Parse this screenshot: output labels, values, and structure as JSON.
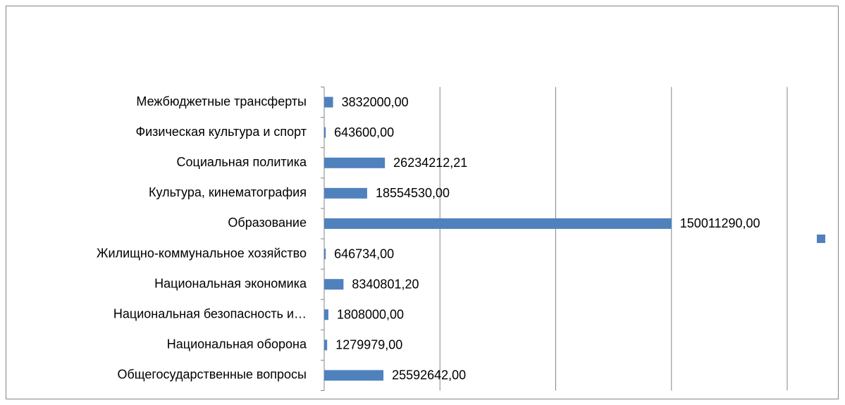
{
  "chart_data": {
    "type": "bar",
    "orientation": "horizontal",
    "categories": [
      "Межбюджетные трансферты",
      "Физическая культура и спорт",
      "Социальная политика",
      "Культура, кинематография",
      "Образование",
      "Жилищно-коммунальное хозяйство",
      "Национальная экономика",
      "Национальная безопасность и…",
      "Национальная оборона",
      "Общегосударственные вопросы"
    ],
    "values": [
      3832000,
      643600,
      26234212.21,
      18554530,
      150011290,
      646734,
      8340801.2,
      1808000,
      1279979,
      25592642
    ],
    "value_labels": [
      "3832000,00",
      "643600,00",
      "26234212,21",
      "18554530,00",
      "150011290,00",
      "646734,00",
      "8340801,20",
      "1808000,00",
      "1279979,00",
      "25592642,00"
    ],
    "color": "#4f81bd",
    "xlim": [
      0,
      200000000
    ],
    "xticks": [
      0,
      50000000,
      100000000,
      150000000,
      200000000
    ],
    "grid": true,
    "legend": "right"
  }
}
